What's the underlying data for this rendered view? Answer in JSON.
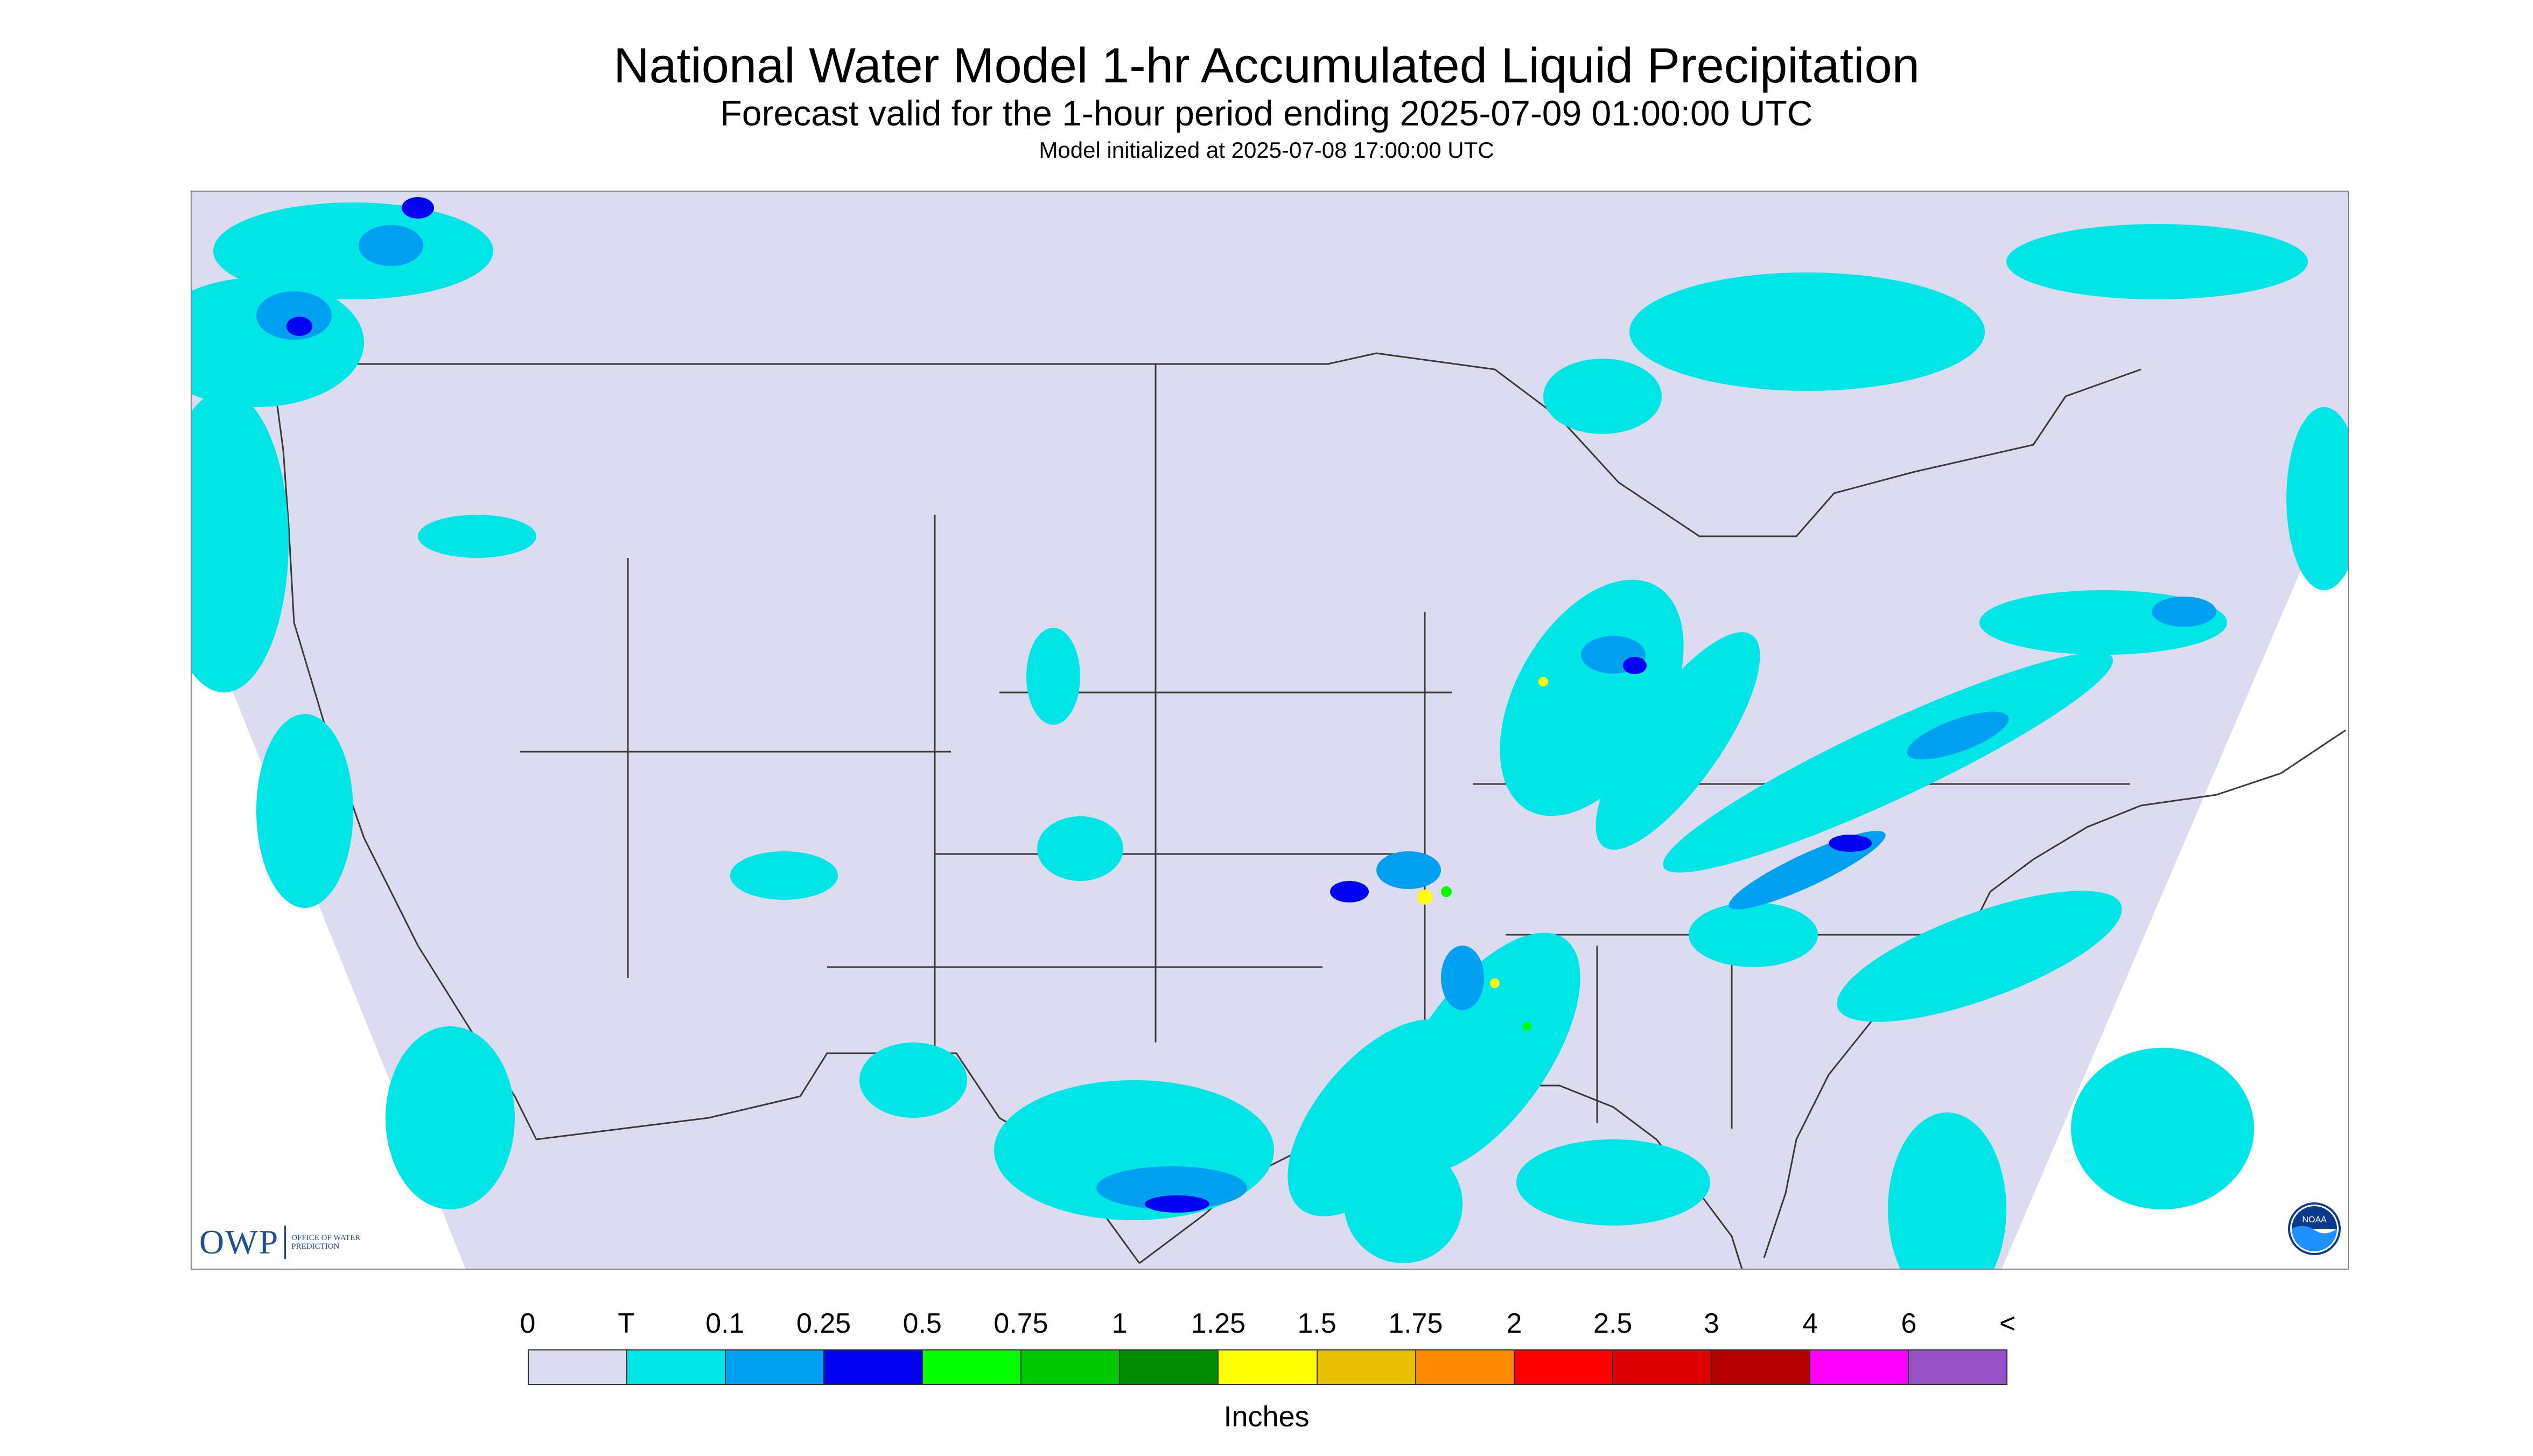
{
  "header": {
    "title": "National Water Model 1-hr Accumulated Liquid Precipitation",
    "subtitle": "Forecast valid for the 1-hour period ending 2025-07-09 01:00:00 UTC",
    "init_line": "Model initialized at 2025-07-08 17:00:00 UTC"
  },
  "logos": {
    "owp_text": "OWP",
    "owp_small": "Office of Water Prediction",
    "noaa_text": "NOAA"
  },
  "colors": {
    "background_domain": "#dcdcf0",
    "outside_domain": "#ffffff",
    "boundary": "#3a3a3a"
  },
  "legend": {
    "units": "Inches",
    "tick_labels": [
      "0",
      "T",
      "0.1",
      "0.25",
      "0.5",
      "0.75",
      "1",
      "1.25",
      "1.5",
      "1.75",
      "2",
      "2.5",
      "3",
      "4",
      "6",
      "<"
    ],
    "bins": [
      {
        "from": "0",
        "to": "T",
        "color": "#dcdcf0"
      },
      {
        "from": "T",
        "to": "0.1",
        "color": "#00e5e5"
      },
      {
        "from": "0.1",
        "to": "0.25",
        "color": "#00a0f0"
      },
      {
        "from": "0.25",
        "to": "0.5",
        "color": "#0000f0"
      },
      {
        "from": "0.5",
        "to": "0.75",
        "color": "#00ff00"
      },
      {
        "from": "0.75",
        "to": "1",
        "color": "#00c800"
      },
      {
        "from": "1",
        "to": "1.25",
        "color": "#008c00"
      },
      {
        "from": "1.25",
        "to": "1.5",
        "color": "#ffff00"
      },
      {
        "from": "1.5",
        "to": "1.75",
        "color": "#e6c000"
      },
      {
        "from": "1.75",
        "to": "2",
        "color": "#ff8c00"
      },
      {
        "from": "2",
        "to": "2.5",
        "color": "#ff0000"
      },
      {
        "from": "2.5",
        "to": "3",
        "color": "#dc0000"
      },
      {
        "from": "3",
        "to": "4",
        "color": "#b40000"
      },
      {
        "from": "4",
        "to": "6",
        "color": "#ff00ff"
      },
      {
        "from": "6",
        "to": "<",
        "color": "#9650c8"
      }
    ]
  }
}
